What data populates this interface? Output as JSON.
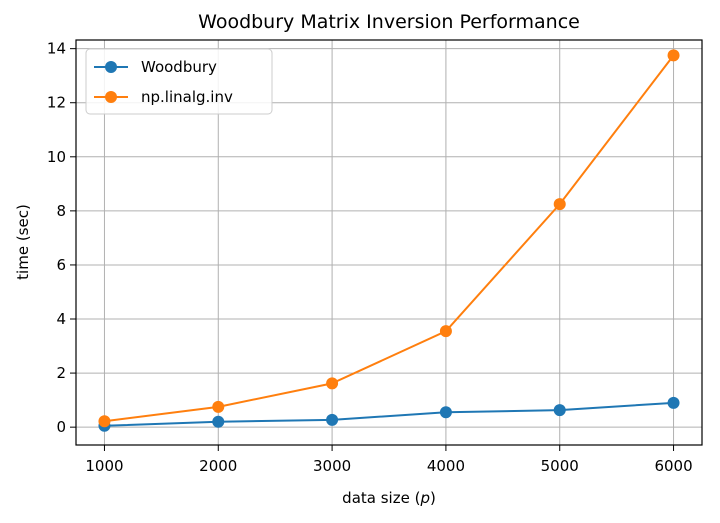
{
  "chart_data": {
    "type": "line",
    "title": "Woodbury Matrix Inversion Performance",
    "xlabel_main": "data size (",
    "xlabel_var": "p",
    "xlabel_end": ")",
    "ylabel": "time (sec)",
    "x": [
      1000,
      2000,
      3000,
      4000,
      5000,
      6000
    ],
    "x_ticks": [
      1000,
      2000,
      3000,
      4000,
      5000,
      6000
    ],
    "y_ticks": [
      0,
      2,
      4,
      6,
      8,
      10,
      12,
      14
    ],
    "xlim": [
      750,
      6250
    ],
    "ylim": [
      -0.66,
      14.32
    ],
    "grid": true,
    "legend_position": "upper-left",
    "series": [
      {
        "name": "Woodbury",
        "color": "#1f77b4",
        "values": [
          0.05,
          0.2,
          0.27,
          0.55,
          0.63,
          0.9
        ]
      },
      {
        "name": "np.linalg.inv",
        "color": "#ff7f0e",
        "values": [
          0.22,
          0.75,
          1.62,
          3.55,
          8.25,
          13.75
        ]
      }
    ]
  }
}
